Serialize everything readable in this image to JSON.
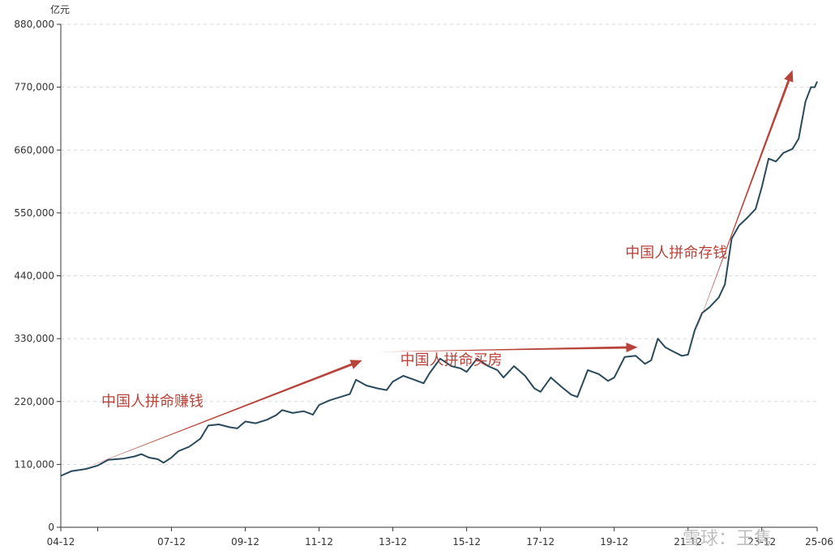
{
  "chart_data": {
    "type": "line",
    "title": "",
    "xlabel": "",
    "ylabel": "亿元",
    "ylim": [
      0,
      880000
    ],
    "yticks": [
      {
        "value": 0,
        "label": "0"
      },
      {
        "value": 110000,
        "label": "110,000"
      },
      {
        "value": 220000,
        "label": "220,000"
      },
      {
        "value": 330000,
        "label": "330,000"
      },
      {
        "value": 440000,
        "label": "440,000"
      },
      {
        "value": 550000,
        "label": "550,000"
      },
      {
        "value": 660000,
        "label": "660,000"
      },
      {
        "value": 770000,
        "label": "770,000"
      },
      {
        "value": 880000,
        "label": "880,000"
      }
    ],
    "xlim": [
      2004.917,
      2025.417
    ],
    "xticks": [
      {
        "value": 2004.917,
        "label": "04-12"
      },
      {
        "value": 2005.917,
        "label": ""
      },
      {
        "value": 2007.917,
        "label": "07-12"
      },
      {
        "value": 2009.917,
        "label": "09-12"
      },
      {
        "value": 2011.917,
        "label": "11-12"
      },
      {
        "value": 2013.917,
        "label": "13-12"
      },
      {
        "value": 2015.917,
        "label": "15-12"
      },
      {
        "value": 2017.917,
        "label": "17-12"
      },
      {
        "value": 2019.917,
        "label": "19-12"
      },
      {
        "value": 2021.917,
        "label": "21-12"
      },
      {
        "value": 2023.917,
        "label": "23-12"
      },
      {
        "value": 2025.417,
        "label": "25-06"
      }
    ],
    "grid": "horizontal-dashed",
    "line_color": "#2a4a5c",
    "series": [
      {
        "points": [
          [
            2004.917,
            90000
          ],
          [
            2005.2,
            98000
          ],
          [
            2005.6,
            102000
          ],
          [
            2005.917,
            108000
          ],
          [
            2006.2,
            118000
          ],
          [
            2006.6,
            120000
          ],
          [
            2006.917,
            124000
          ],
          [
            2007.1,
            128000
          ],
          [
            2007.3,
            122000
          ],
          [
            2007.55,
            119000
          ],
          [
            2007.7,
            113000
          ],
          [
            2007.917,
            122000
          ],
          [
            2008.1,
            133000
          ],
          [
            2008.4,
            141000
          ],
          [
            2008.7,
            155000
          ],
          [
            2008.917,
            178000
          ],
          [
            2009.2,
            180000
          ],
          [
            2009.5,
            175000
          ],
          [
            2009.7,
            173000
          ],
          [
            2009.917,
            185000
          ],
          [
            2010.2,
            182000
          ],
          [
            2010.5,
            188000
          ],
          [
            2010.75,
            196000
          ],
          [
            2010.917,
            205000
          ],
          [
            2011.2,
            200000
          ],
          [
            2011.5,
            203000
          ],
          [
            2011.75,
            197000
          ],
          [
            2011.917,
            214000
          ],
          [
            2012.2,
            222000
          ],
          [
            2012.5,
            228000
          ],
          [
            2012.75,
            233000
          ],
          [
            2012.917,
            258000
          ],
          [
            2013.2,
            248000
          ],
          [
            2013.5,
            243000
          ],
          [
            2013.75,
            240000
          ],
          [
            2013.917,
            255000
          ],
          [
            2014.2,
            265000
          ],
          [
            2014.5,
            258000
          ],
          [
            2014.75,
            252000
          ],
          [
            2014.917,
            270000
          ],
          [
            2015.2,
            295000
          ],
          [
            2015.5,
            282000
          ],
          [
            2015.75,
            278000
          ],
          [
            2015.917,
            272000
          ],
          [
            2016.2,
            295000
          ],
          [
            2016.5,
            282000
          ],
          [
            2016.75,
            275000
          ],
          [
            2016.917,
            262000
          ],
          [
            2017.2,
            282000
          ],
          [
            2017.5,
            265000
          ],
          [
            2017.75,
            243000
          ],
          [
            2017.917,
            237000
          ],
          [
            2018.2,
            262000
          ],
          [
            2018.5,
            245000
          ],
          [
            2018.75,
            232000
          ],
          [
            2018.917,
            228000
          ],
          [
            2019.2,
            275000
          ],
          [
            2019.5,
            268000
          ],
          [
            2019.75,
            256000
          ],
          [
            2019.917,
            262000
          ],
          [
            2020.2,
            298000
          ],
          [
            2020.5,
            300000
          ],
          [
            2020.75,
            286000
          ],
          [
            2020.917,
            292000
          ],
          [
            2021.1,
            330000
          ],
          [
            2021.3,
            315000
          ],
          [
            2021.5,
            308000
          ],
          [
            2021.75,
            300000
          ],
          [
            2021.917,
            302000
          ],
          [
            2022.1,
            345000
          ],
          [
            2022.3,
            375000
          ],
          [
            2022.5,
            385000
          ],
          [
            2022.75,
            402000
          ],
          [
            2022.917,
            425000
          ],
          [
            2023.1,
            505000
          ],
          [
            2023.3,
            528000
          ],
          [
            2023.5,
            540000
          ],
          [
            2023.75,
            557000
          ],
          [
            2023.917,
            595000
          ],
          [
            2024.1,
            645000
          ],
          [
            2024.3,
            640000
          ],
          [
            2024.5,
            655000
          ],
          [
            2024.75,
            662000
          ],
          [
            2024.917,
            680000
          ],
          [
            2025.1,
            745000
          ],
          [
            2025.25,
            770000
          ],
          [
            2025.35,
            770000
          ],
          [
            2025.417,
            780000
          ]
        ]
      }
    ],
    "arrow_color": "#b8433a",
    "arrows": [
      {
        "from": [
          2005.417,
          100000
        ],
        "to": [
          2013.083,
          292000
        ]
      },
      {
        "from": [
          2013.55,
          307000
        ],
        "to": [
          2020.55,
          315000
        ]
      },
      {
        "from": [
          2022.0,
          320000
        ],
        "to": [
          2024.75,
          800000
        ]
      }
    ],
    "annotations": [
      {
        "text": "中国人拼命赚钱",
        "x": 2007.4,
        "y": 212000
      },
      {
        "text": "中国人拼命买房",
        "x": 2015.5,
        "y": 284000
      },
      {
        "text": "中国人拼命存钱",
        "x": 2021.6,
        "y": 472000
      }
    ],
    "watermark": "雪球：王隽"
  }
}
